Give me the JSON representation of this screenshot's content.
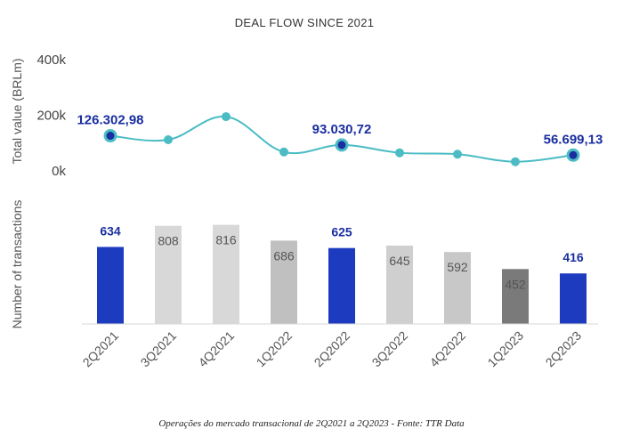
{
  "chart_data": {
    "title": "DEAL FLOW SINCE 2021",
    "categories": [
      "2Q2021",
      "3Q2021",
      "4Q2021",
      "1Q2022",
      "2Q2022",
      "3Q2022",
      "4Q2022",
      "1Q2023",
      "2Q2023"
    ],
    "line": {
      "type": "line",
      "ylabel": "Total value (BRLm)",
      "ylim": [
        0,
        400000
      ],
      "yticks": [
        "0k",
        "200k",
        "400k"
      ],
      "tick_values": [
        0,
        200000,
        400000
      ],
      "values": [
        126302.98,
        112000,
        195000,
        68000,
        93030.72,
        65000,
        60000,
        33000,
        56699.13
      ],
      "highlighted": [
        true,
        false,
        false,
        false,
        true,
        false,
        false,
        false,
        true
      ],
      "labels": [
        "126.302,98",
        "",
        "",
        "",
        "93.030,72",
        "",
        "",
        "",
        "56.699,13"
      ],
      "line_color": "#4bbcc4",
      "marker_color": "#4bbcc4",
      "highlight_color": "#1a2ea0"
    },
    "bars": {
      "type": "bar",
      "ylabel": "Number of transactions",
      "values": [
        634,
        808,
        816,
        686,
        625,
        645,
        592,
        452,
        416
      ],
      "labels": [
        "634",
        "808",
        "816",
        "686",
        "625",
        "645",
        "592",
        "452",
        "416"
      ],
      "colors": [
        "#1d3bbf",
        "#d8d8d8",
        "#d8d8d8",
        "#c0c0c0",
        "#1d3bbf",
        "#cfcfcf",
        "#c8c8c8",
        "#7a7a7a",
        "#1d3bbf"
      ],
      "highlighted": [
        true,
        false,
        false,
        false,
        true,
        false,
        false,
        false,
        true
      ]
    }
  },
  "caption": "Operações do mercado transacional de 2Q2021 a 2Q2023 - Fonte: TTR Data"
}
